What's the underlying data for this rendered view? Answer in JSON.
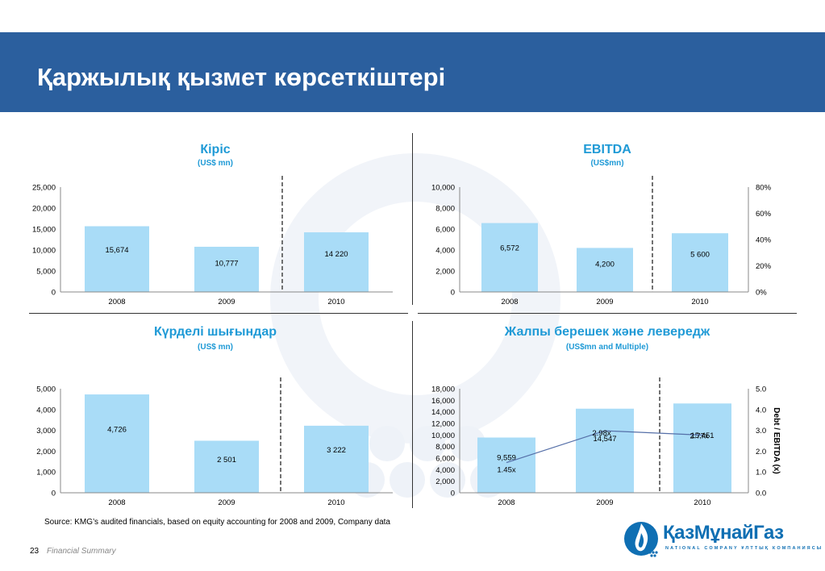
{
  "header": {
    "title": "Қаржылық қызмет көрсеткіштері"
  },
  "source_note": "Source: KMG’s audited financials, based on equity accounting for 2008 and 2009, Company data",
  "footer": {
    "page_number": "23",
    "label": "Financial Summary"
  },
  "logo": {
    "text": "ҚазМұнайГаз",
    "subtitle": "NATIONAL COMPANY ҰЛТТЫҚ КОМПАНИЯСЫ"
  },
  "colors": {
    "header": "#2b5f9e",
    "bar": "#a9dcf7",
    "title": "#1f9ad6",
    "line": "#556fa8"
  },
  "chart_data": [
    {
      "id": "revenue",
      "type": "bar",
      "title": "Кіріс",
      "subtitle": "(US$ mn)",
      "categories": [
        "2008",
        "2009",
        "2010"
      ],
      "values": [
        15674,
        10777,
        14220
      ],
      "data_labels": [
        "15,674",
        "10,777",
        "14 220"
      ],
      "ylim": [
        0,
        25000
      ],
      "yticks": [
        "0",
        "5,000",
        "10,000",
        "15,000",
        "20,000",
        "25,000"
      ],
      "forecast_divider": "between 2009 and 2010"
    },
    {
      "id": "ebitda",
      "type": "bar",
      "title": "EBITDA",
      "subtitle": "(US$mn)",
      "categories": [
        "2008",
        "2009",
        "2010"
      ],
      "values": [
        6572,
        4200,
        5600
      ],
      "data_labels": [
        "6,572",
        "4,200",
        "5 600"
      ],
      "ylim": [
        0,
        10000
      ],
      "yticks": [
        "0",
        "2,000",
        "4,000",
        "6,000",
        "8,000",
        "10,000"
      ],
      "y2ticks": [
        "0%",
        "20%",
        "40%",
        "60%",
        "80%"
      ],
      "forecast_divider": "between 2009 and 2010"
    },
    {
      "id": "capex",
      "type": "bar",
      "title": "Күрделі шығындар",
      "subtitle": "(US$ mn)",
      "categories": [
        "2008",
        "2009",
        "2010"
      ],
      "values": [
        4726,
        2501,
        3222
      ],
      "data_labels": [
        "4,726",
        "2 501",
        "3 222"
      ],
      "ylim": [
        0,
        5000
      ],
      "yticks": [
        "0",
        "1,000",
        "2,000",
        "3,000",
        "4,000",
        "5,000"
      ],
      "forecast_divider": "between 2009 and 2010"
    },
    {
      "id": "debt",
      "type": "bar",
      "title": "Жалпы берешек және левередж",
      "subtitle": "(US$mn and Multiple)",
      "categories": [
        "2008",
        "2009",
        "2010"
      ],
      "values": [
        9559,
        14547,
        15451
      ],
      "data_labels": [
        "9,559",
        "14,547",
        "15,451"
      ],
      "ylim": [
        0,
        18000
      ],
      "yticks": [
        "0",
        "2,000",
        "4,000",
        "6,000",
        "8,000",
        "10,000",
        "12,000",
        "14,000",
        "16,000",
        "18,000"
      ],
      "line_series": {
        "values": [
          1.45,
          2.98,
          2.77
        ],
        "labels": [
          "1.45x",
          "2.98x",
          "2.77x"
        ]
      },
      "y2lim": [
        0,
        5
      ],
      "y2ticks": [
        "0.0",
        "1.0",
        "2.0",
        "3.0",
        "4.0",
        "5.0"
      ],
      "y2label": "Debt / EBITDA (x)",
      "forecast_divider": "between 2009 and 2010"
    }
  ]
}
